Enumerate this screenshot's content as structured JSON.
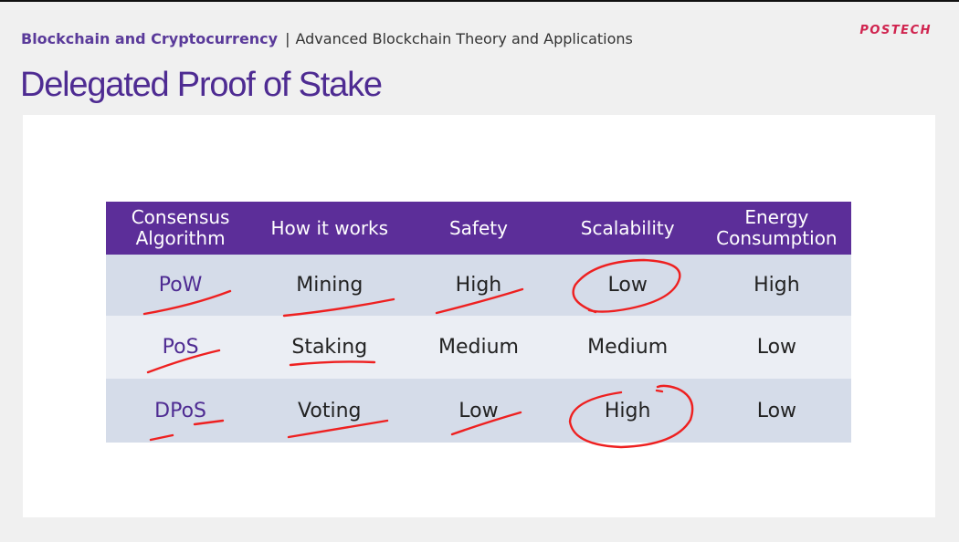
{
  "header": {
    "course": "Blockchain and Cryptocurrency",
    "separator": "|",
    "subtitle": "Advanced Blockchain Theory and Applications",
    "logo": "POSTECH"
  },
  "slide": {
    "title": "Delegated Proof of Stake"
  },
  "table": {
    "headers": [
      "Consensus\nAlgorithm",
      "How it works",
      "Safety",
      "Scalability",
      "Energy\nConsumption"
    ],
    "rows": [
      [
        "PoW",
        "Mining",
        "High",
        "Low",
        "High"
      ],
      [
        "PoS",
        "Staking",
        "Medium",
        "Medium",
        "Low"
      ],
      [
        "DPoS",
        "Voting",
        "Low",
        "High",
        "Low"
      ]
    ]
  },
  "colors": {
    "accent_purple": "#5c2e99",
    "title_purple": "#4e2b92",
    "logo_red": "#d0244f",
    "ink_red": "#ee2020",
    "row_dark": "#d5dce9",
    "row_light": "#ebeef4"
  }
}
